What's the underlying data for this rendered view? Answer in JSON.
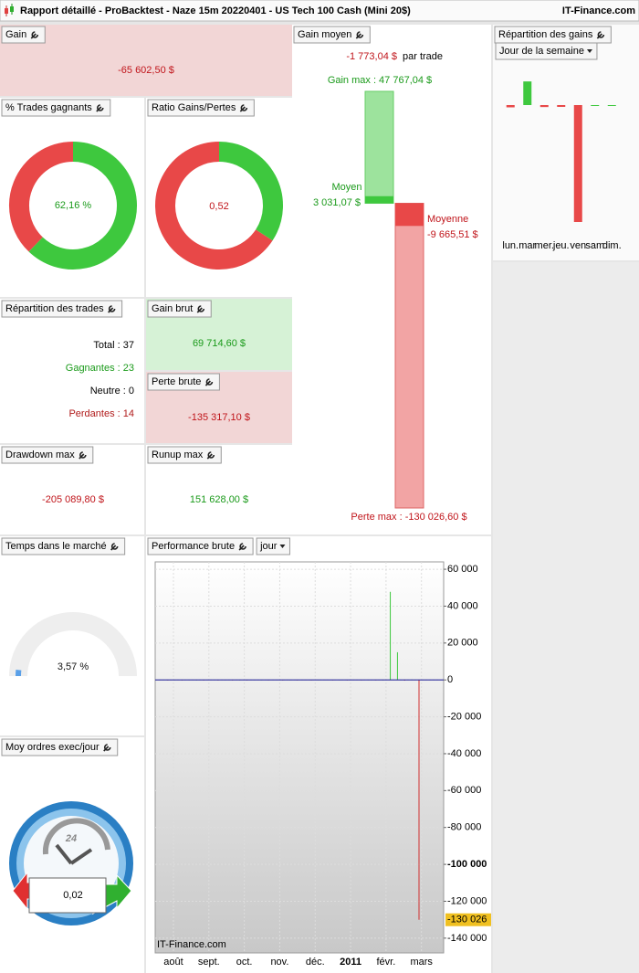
{
  "title": "Rapport détaillé - ProBacktest - Naze 15m 20220401 - US Tech 100 Cash (Mini 20$)",
  "brand": "IT-Finance.com",
  "gain": {
    "label": "Gain",
    "value": "-65 602,50 $"
  },
  "trades_gagnants": {
    "label": "% Trades gagnants",
    "value": 62.16,
    "value_label": "62,16 %"
  },
  "ratio": {
    "label": "Ratio Gains/Pertes",
    "value": 0.52,
    "value_label": "0,52"
  },
  "repartition_trades": {
    "label": "Répartition des trades",
    "rows": [
      {
        "text": "Total : 37",
        "color": "#000000"
      },
      {
        "text": "Gagnantes : 23",
        "color": "#1a9a1a"
      },
      {
        "text": "Neutre : 0",
        "color": "#000000"
      },
      {
        "text": "Perdantes : 14",
        "color": "#b01a1a"
      }
    ]
  },
  "gain_brut": {
    "label": "Gain brut",
    "value": "69 714,60 $"
  },
  "perte_brute": {
    "label": "Perte brute",
    "value": "-135 317,10 $"
  },
  "drawdown": {
    "label": "Drawdown max",
    "value": "-205 089,80 $"
  },
  "runup": {
    "label": "Runup max",
    "value": "151 628,00 $"
  },
  "temps_marche": {
    "label": "Temps dans le marché",
    "value": 3.57,
    "value_label": "3,57 %"
  },
  "moy_ordres": {
    "label": "Moy ordres exec/jour",
    "value": "0,02",
    "clock": "24"
  },
  "gain_moyen": {
    "label": "Gain moyen",
    "per_trade": "-1 773,04 $",
    "per_trade_suffix": "par trade",
    "gain_max": 47767.04,
    "gain_max_label": "Gain max : 47 767,04 $",
    "moyen_label": "Moyen",
    "moyen": 3031.07,
    "moyen_value_label": "3 031,07 $",
    "moyenne_label": "Moyenne",
    "moyenne": -9665.51,
    "moyenne_value_label": "-9 665,51 $",
    "perte_max": -130026.6,
    "perte_max_label": "Perte max : -130 026,60 $"
  },
  "repartition_gains": {
    "label": "Répartition des gains",
    "dropdown": "Jour de la semaine",
    "categories": [
      "lun.",
      "mar",
      "mer.",
      "jeu.",
      "ven",
      "sam",
      "dim."
    ],
    "values": [
      -1500,
      15600,
      -1300,
      -1200,
      -77200,
      0,
      0
    ]
  },
  "chart_data": {
    "type": "bar",
    "title": "Performance brute",
    "dropdown": "jour",
    "x_labels": [
      "août",
      "sept.",
      "oct.",
      "nov.",
      "déc.",
      "2011",
      "févr.",
      "mars"
    ],
    "values": [
      120,
      -80,
      60,
      -150,
      90,
      40,
      -60,
      110,
      -90,
      70,
      -40,
      50,
      -120,
      80,
      30,
      -70,
      100,
      -50,
      60,
      -30,
      90,
      -110,
      40,
      70,
      -60,
      50,
      -80,
      120,
      -40,
      60,
      -90,
      30,
      47767.04,
      15000,
      -400,
      200,
      -130026.6
    ],
    "up_color": "#3ec83e",
    "down_color": "#d03030",
    "ylim": [
      -148000,
      64000
    ],
    "yticks": [
      {
        "value": 60000,
        "label": "60 000"
      },
      {
        "value": 40000,
        "label": "40 000"
      },
      {
        "value": 20000,
        "label": "20 000"
      },
      0,
      {
        "value": -20000,
        "label": "-20 000"
      },
      {
        "value": -40000,
        "label": "-40 000"
      },
      {
        "value": -60000,
        "label": "-60 000"
      },
      {
        "value": -80000,
        "label": "-80 000"
      },
      {
        "value": -100000,
        "label": "-100 000"
      },
      {
        "value": -120000,
        "label": "-120 000"
      },
      {
        "value": -140000,
        "label": "-140 000"
      }
    ],
    "last_value": {
      "value": -130026,
      "label": "-130 026"
    }
  }
}
